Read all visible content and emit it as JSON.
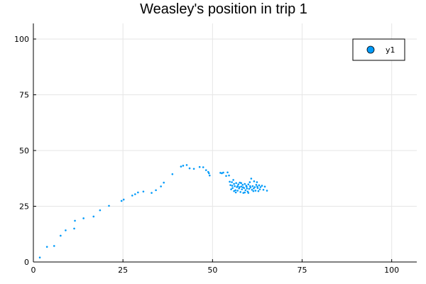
{
  "chart_data": {
    "type": "scatter",
    "title": "Weasley's position in trip 1",
    "xlabel": "",
    "ylabel": "",
    "xlim": [
      0,
      107
    ],
    "ylim": [
      0,
      107
    ],
    "xticks": [
      0,
      25,
      50,
      75,
      100
    ],
    "yticks": [
      0,
      25,
      50,
      75,
      100
    ],
    "grid": true,
    "legend_position": "top-right",
    "series": [
      {
        "name": "y1",
        "color": "#009af9",
        "points": [
          [
            1.8,
            2.0
          ],
          [
            3.8,
            6.8
          ],
          [
            5.8,
            7.2
          ],
          [
            7.6,
            11.8
          ],
          [
            9.0,
            14.2
          ],
          [
            11.4,
            15.0
          ],
          [
            11.6,
            18.5
          ],
          [
            14.0,
            19.6
          ],
          [
            16.8,
            20.4
          ],
          [
            18.6,
            23.2
          ],
          [
            21.1,
            25.2
          ],
          [
            24.6,
            27.4
          ],
          [
            25.2,
            28.0
          ],
          [
            27.6,
            29.8
          ],
          [
            28.4,
            30.4
          ],
          [
            29.2,
            31.2
          ],
          [
            30.7,
            31.6
          ],
          [
            33.0,
            31.0
          ],
          [
            34.2,
            32.2
          ],
          [
            35.6,
            33.9
          ],
          [
            36.4,
            35.6
          ],
          [
            38.8,
            39.4
          ],
          [
            41.2,
            42.8
          ],
          [
            41.8,
            43.2
          ],
          [
            42.8,
            43.5
          ],
          [
            43.6,
            42.0
          ],
          [
            44.8,
            41.8
          ],
          [
            46.4,
            42.6
          ],
          [
            47.4,
            42.5
          ],
          [
            48.2,
            41.2
          ],
          [
            48.8,
            40.4
          ],
          [
            49.0,
            39.8
          ],
          [
            49.2,
            38.8
          ],
          [
            52.2,
            40.0
          ],
          [
            52.6,
            39.8
          ],
          [
            53.0,
            40.1
          ],
          [
            53.8,
            38.6
          ],
          [
            54.2,
            40.2
          ],
          [
            54.6,
            38.8
          ],
          [
            54.8,
            36.0
          ],
          [
            55.0,
            34.5
          ],
          [
            55.2,
            32.6
          ],
          [
            55.4,
            35.8
          ],
          [
            55.6,
            33.2
          ],
          [
            55.8,
            36.8
          ],
          [
            56.0,
            31.8
          ],
          [
            56.2,
            34.0
          ],
          [
            56.4,
            32.2
          ],
          [
            56.6,
            35.4
          ],
          [
            56.8,
            33.6
          ],
          [
            57.0,
            32.0
          ],
          [
            57.2,
            34.8
          ],
          [
            57.4,
            33.0
          ],
          [
            57.6,
            35.6
          ],
          [
            57.8,
            31.4
          ],
          [
            58.0,
            33.8
          ],
          [
            58.2,
            32.6
          ],
          [
            58.4,
            34.6
          ],
          [
            58.6,
            31.0
          ],
          [
            58.8,
            33.2
          ],
          [
            59.0,
            35.0
          ],
          [
            59.2,
            32.2
          ],
          [
            59.4,
            34.2
          ],
          [
            59.6,
            33.0
          ],
          [
            59.8,
            31.6
          ],
          [
            60.0,
            34.8
          ],
          [
            60.2,
            32.8
          ],
          [
            60.4,
            35.8
          ],
          [
            60.6,
            33.4
          ],
          [
            60.8,
            37.4
          ],
          [
            61.0,
            32.4
          ],
          [
            61.2,
            34.0
          ],
          [
            61.4,
            31.8
          ],
          [
            61.6,
            36.2
          ],
          [
            61.8,
            33.6
          ],
          [
            62.0,
            32.0
          ],
          [
            62.2,
            34.6
          ],
          [
            62.4,
            35.8
          ],
          [
            62.6,
            33.2
          ],
          [
            62.8,
            31.8
          ],
          [
            63.0,
            34.4
          ],
          [
            63.2,
            32.6
          ],
          [
            63.4,
            33.6
          ],
          [
            63.8,
            34.2
          ],
          [
            64.2,
            32.4
          ],
          [
            64.6,
            33.8
          ],
          [
            65.2,
            32.0
          ],
          [
            56.0,
            35.0
          ],
          [
            57.0,
            34.0
          ],
          [
            58.5,
            33.5
          ],
          [
            59.5,
            33.8
          ],
          [
            60.5,
            34.0
          ],
          [
            61.5,
            33.0
          ],
          [
            62.5,
            33.8
          ],
          [
            55.5,
            34.2
          ],
          [
            56.5,
            31.2
          ],
          [
            59.0,
            31.2
          ],
          [
            60.0,
            31.0
          ],
          [
            57.5,
            33.6
          ],
          [
            58.0,
            35.4
          ]
        ]
      }
    ]
  }
}
